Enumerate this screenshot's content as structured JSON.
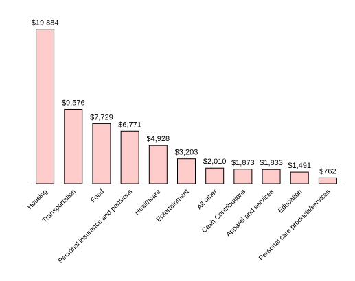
{
  "chart_data": {
    "type": "bar",
    "title": "",
    "xlabel": "",
    "ylabel": "",
    "categories": [
      "Housing",
      "Transportation",
      "Food",
      "Personal insurance and pensions",
      "Healthcare",
      "Entertainment",
      "All other",
      "Cash Contributions",
      "Apparel and services",
      "Education",
      "Personal care products/services"
    ],
    "values": [
      19884,
      9576,
      7729,
      6771,
      4928,
      3203,
      2010,
      1873,
      1833,
      1491,
      762
    ],
    "data_labels": [
      "$19,884",
      "$9,576",
      "$7,729",
      "$6,771",
      "$4,928",
      "$3,203",
      "$2,010",
      "$1,873",
      "$1,833",
      "$1,491",
      "$762"
    ],
    "ylim": [
      0,
      21000
    ],
    "grid": false,
    "legend": "none",
    "tick_label_rotation": -45,
    "colors": {
      "bar_fill": "#ffcccc",
      "bar_stroke": "#000000",
      "axis": "#8c8c8c",
      "text": "#000000"
    }
  }
}
